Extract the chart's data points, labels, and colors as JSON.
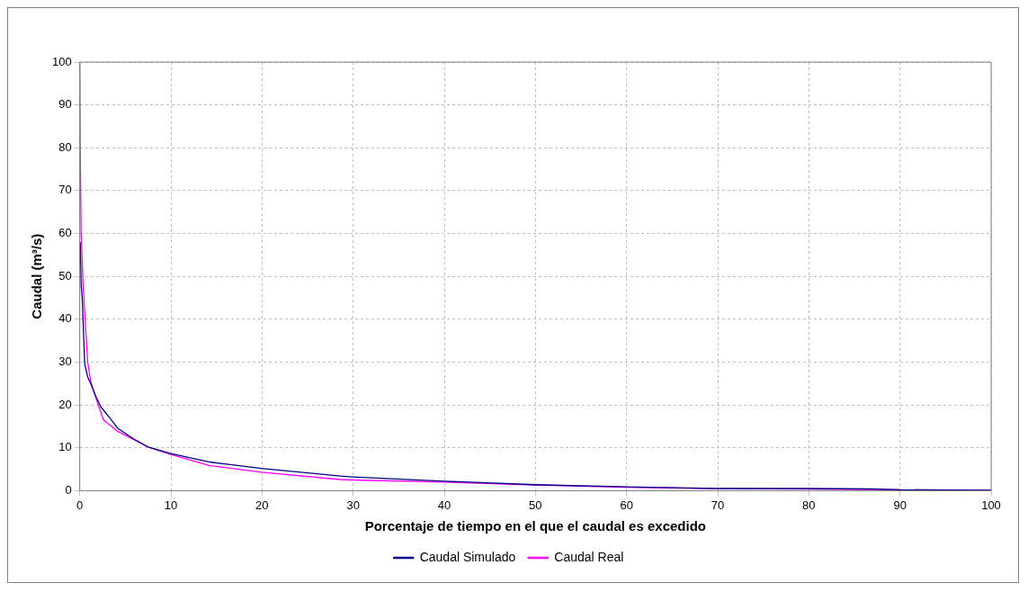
{
  "chart_data": {
    "type": "line",
    "xlabel": "Porcentaje de tiempo en el que el caudal es excedido",
    "ylabel": "Caudal (m³/s)",
    "xlim": [
      0,
      100
    ],
    "ylim": [
      0,
      100
    ],
    "xticks": [
      0,
      10,
      20,
      30,
      40,
      50,
      60,
      70,
      80,
      90,
      100
    ],
    "yticks": [
      0,
      10,
      20,
      30,
      40,
      50,
      60,
      70,
      80,
      90,
      100
    ],
    "grid": true,
    "legend": "bottom",
    "marker": "none",
    "line_style": "solid",
    "series": [
      {
        "name": "Caudal Simulado",
        "color": "#000080",
        "x": [
          0.05,
          0.15,
          0.27,
          0.54,
          0.87,
          1.2,
          1.7,
          2.3,
          3.2,
          4.2,
          5.9,
          7.5,
          9.9,
          14.2,
          19.9,
          28.6,
          30,
          40,
          50,
          60,
          70,
          80,
          87,
          90,
          100
        ],
        "values": [
          58,
          48,
          45,
          29.6,
          26.5,
          25,
          22.3,
          19.6,
          17.2,
          14.5,
          12.1,
          10.2,
          8.7,
          6.7,
          5.2,
          3.4,
          3.2,
          2.2,
          1.4,
          0.9,
          0.5,
          0.5,
          0.4,
          0.2,
          0.1
        ]
      },
      {
        "name": "Caudal Real",
        "color": "#ff00ff",
        "x": [
          0,
          0.05,
          0.15,
          0.37,
          0.87,
          1.2,
          1.9,
          2.6,
          4.2,
          7.5,
          9.9,
          14.2,
          19.9,
          28.6,
          30,
          40,
          50,
          60,
          70,
          80,
          90,
          100
        ],
        "values": [
          100,
          79,
          60,
          47.8,
          30,
          25.5,
          20.8,
          16.5,
          13.8,
          10.2,
          8.5,
          5.9,
          4.3,
          2.6,
          2.5,
          2,
          1.3,
          0.8,
          0.5,
          0.4,
          0.2,
          0.1
        ]
      }
    ]
  }
}
